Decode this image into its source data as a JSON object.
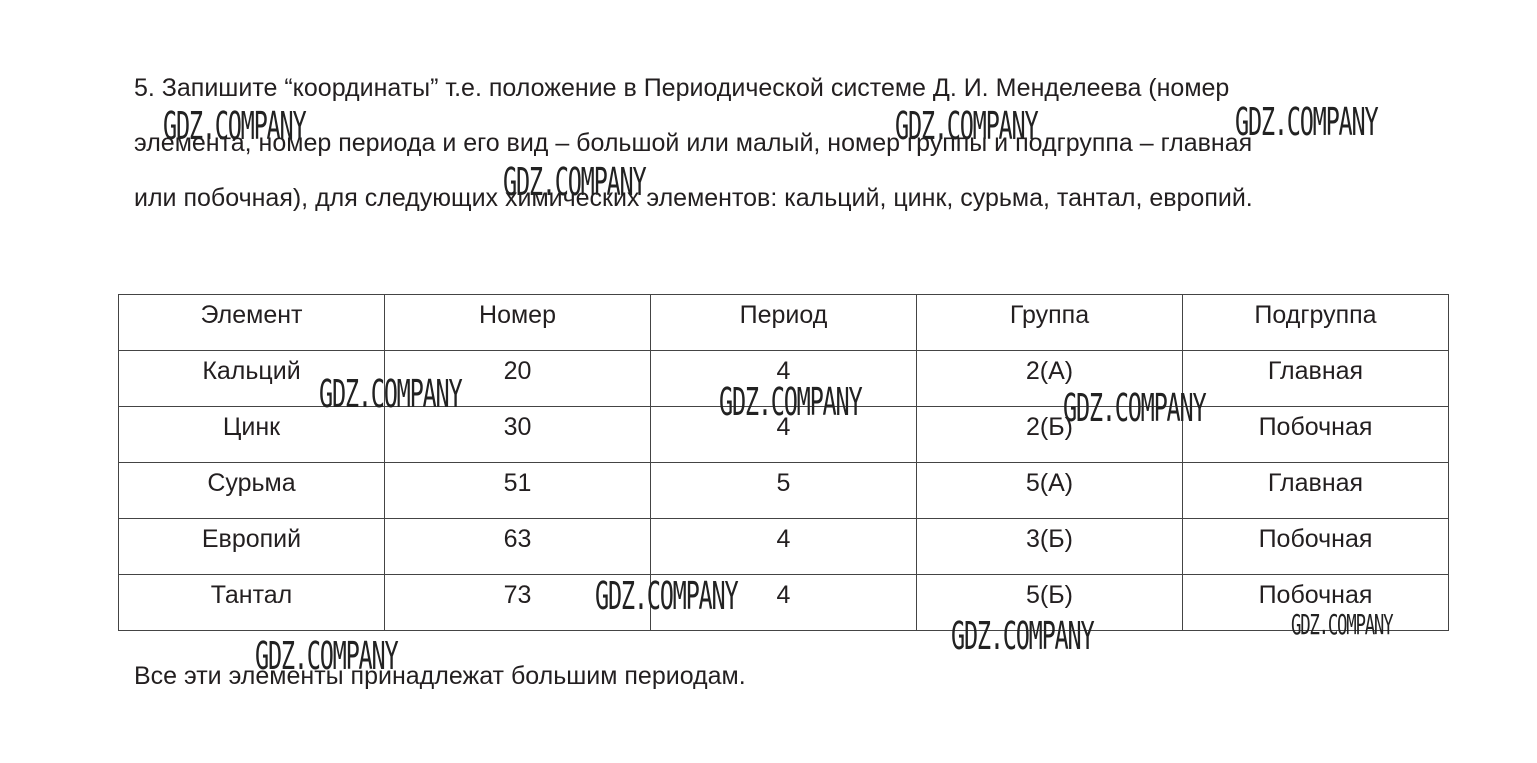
{
  "task": {
    "lines": [
      "5. Запишите “координаты” т.е. положение в Периодической системе Д. И. Менделеева (номер",
      "элемента, номер периода и его вид – большой или малый, номер группы и подгруппа – главная",
      "или побочная), для следующих химических элементов: кальций, цинк, сурьма, тантал, европий."
    ]
  },
  "table": {
    "headers": [
      "Элемент",
      "Номер",
      "Период",
      "Группа",
      "Подгруппа"
    ],
    "rows": [
      [
        "Кальций",
        "20",
        "4",
        "2(А)",
        "Главная"
      ],
      [
        "Цинк",
        "30",
        "4",
        "2(Б)",
        "Побочная"
      ],
      [
        "Сурьма",
        "51",
        "5",
        "5(А)",
        "Главная"
      ],
      [
        "Европий",
        "63",
        "4",
        "3(Б)",
        "Побочная"
      ],
      [
        "Тантал",
        "73",
        "4",
        "5(Б)",
        "Побочная"
      ]
    ]
  },
  "conclusion": "Все эти элементы принадлежат большим периодам.",
  "watermark": "GDZ.COMPANY"
}
